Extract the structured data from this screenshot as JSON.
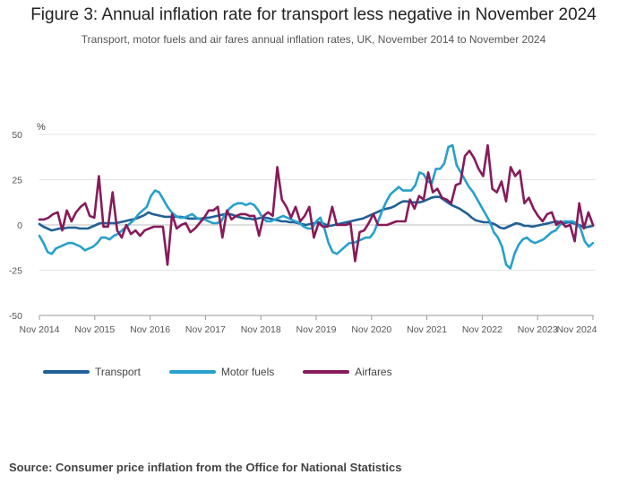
{
  "header": {
    "title": "Figure 3: Annual inflation rate for transport less negative in November 2024",
    "subtitle": "Transport, motor fuels and air fares annual inflation rates, UK, November 2014 to November 2024"
  },
  "source": "Source: Consumer price inflation from the Office for National Statistics",
  "chart_data": {
    "type": "line",
    "ylabel": "%",
    "ylim": [
      -50,
      50
    ],
    "yticks": [
      50,
      25,
      0,
      -25,
      -50
    ],
    "x_start": "Nov 2014",
    "x_end": "Nov 2024",
    "xticks": [
      "Nov 2014",
      "Nov 2015",
      "Nov 2016",
      "Nov 2017",
      "Nov 2018",
      "Nov 2019",
      "Nov 2020",
      "Nov 2021",
      "Nov 2022",
      "Nov 2023",
      "Nov 2024"
    ],
    "grid": true,
    "legend_position": "bottom",
    "series": [
      {
        "name": "Transport",
        "color": "#206095",
        "values": [
          0.5,
          -1,
          -2,
          -3,
          -2.5,
          -2,
          -2,
          -1.5,
          -1.5,
          -1.5,
          -2,
          -2,
          -2,
          -1,
          0,
          1,
          1,
          1,
          1,
          1,
          1.5,
          2,
          2.5,
          3,
          3.5,
          4.5,
          5.5,
          7,
          6,
          5.5,
          5,
          4.5,
          4.5,
          4.5,
          4.5,
          4.5,
          4,
          3.5,
          3.5,
          3.5,
          3.5,
          4,
          4,
          4.5,
          5,
          5.5,
          6,
          6,
          5.5,
          4.5,
          4,
          3.5,
          3.5,
          3,
          3.5,
          4,
          4,
          3.5,
          3,
          2.5,
          2,
          2,
          1.5,
          1.5,
          1,
          0.5,
          0,
          0.5,
          1,
          1.5,
          1,
          0,
          -0.5,
          0,
          0.5,
          1,
          1.5,
          2,
          2.5,
          3,
          3.5,
          4.5,
          5.5,
          6.5,
          7.5,
          8.5,
          9,
          9.5,
          10.5,
          12,
          13,
          13,
          12.5,
          12.5,
          12.5,
          13,
          14,
          15,
          15.5,
          15.5,
          14,
          12.5,
          11,
          10,
          9,
          7.5,
          6,
          4,
          2.5,
          2,
          1.5,
          1.5,
          1,
          0,
          -1.5,
          -2,
          -1,
          0,
          1,
          0.5,
          -0.5,
          -0.5,
          -1,
          -0.5,
          0,
          0.5,
          1,
          1.5,
          2,
          1.5,
          1,
          1.5,
          1,
          0.5,
          -0.5,
          -1.5,
          -1,
          -0.5
        ]
      },
      {
        "name": "Motor fuels",
        "color": "#27a0cc",
        "values": [
          -6,
          -10,
          -15,
          -16,
          -13,
          -12,
          -11,
          -10,
          -10,
          -11,
          -12,
          -14,
          -13,
          -12,
          -10,
          -7,
          -7,
          -8,
          -6,
          -5,
          -3,
          -1,
          1,
          3,
          6,
          8,
          10,
          16,
          19,
          18,
          14,
          10,
          7,
          5,
          4,
          4,
          5,
          6,
          4,
          3,
          3,
          2,
          1,
          1,
          2,
          6,
          9,
          11,
          12,
          12,
          11,
          12,
          11,
          8,
          4,
          2,
          2,
          3,
          4,
          5,
          4,
          3,
          2,
          1,
          -1,
          -2,
          -2,
          2,
          4,
          -2,
          -10,
          -15,
          -16,
          -14,
          -12,
          -10,
          -10,
          -9,
          -8,
          -7,
          -7,
          -4,
          2,
          8,
          13,
          17,
          19,
          21,
          19,
          19,
          19,
          22,
          29,
          28,
          24,
          23,
          31,
          31,
          34,
          43,
          44,
          33,
          29,
          25,
          21,
          18,
          14,
          10,
          6,
          2,
          -4,
          -7,
          -12,
          -22,
          -24,
          -16,
          -11,
          -8,
          -7,
          -9,
          -10,
          -9,
          -8,
          -6,
          -4,
          -3,
          0,
          2,
          2,
          2,
          1,
          -2,
          -9,
          -12,
          -10
        ]
      },
      {
        "name": "Airfares",
        "color": "#871a5b",
        "values": [
          3,
          3,
          4,
          6,
          7,
          -3,
          8,
          2,
          7,
          10,
          12,
          5,
          4,
          27,
          -1,
          -1,
          18,
          -3,
          -7,
          0,
          -5,
          -3,
          -6,
          -3,
          -2,
          -1,
          -1,
          -1,
          -22,
          6,
          -2,
          0,
          1,
          -4,
          -2,
          1,
          4,
          8,
          8,
          10,
          -7,
          8,
          3,
          5,
          6,
          6,
          5,
          5,
          -6,
          5,
          7,
          5,
          32,
          14,
          10,
          4,
          10,
          2,
          5,
          10,
          -7,
          1,
          -1,
          -1,
          10,
          0,
          0,
          0,
          1,
          -20,
          -4,
          -3,
          1,
          6,
          0,
          0,
          0,
          1,
          2,
          2,
          2,
          14,
          9,
          16,
          14,
          29,
          18,
          20,
          15,
          14,
          12,
          22,
          23,
          38,
          41,
          37,
          31,
          27,
          44,
          20,
          18,
          24,
          13,
          32,
          27,
          30,
          12,
          15,
          9,
          5,
          2,
          6,
          7,
          0,
          2,
          -1,
          0,
          -9,
          12,
          -2,
          7,
          0
        ]
      }
    ]
  }
}
